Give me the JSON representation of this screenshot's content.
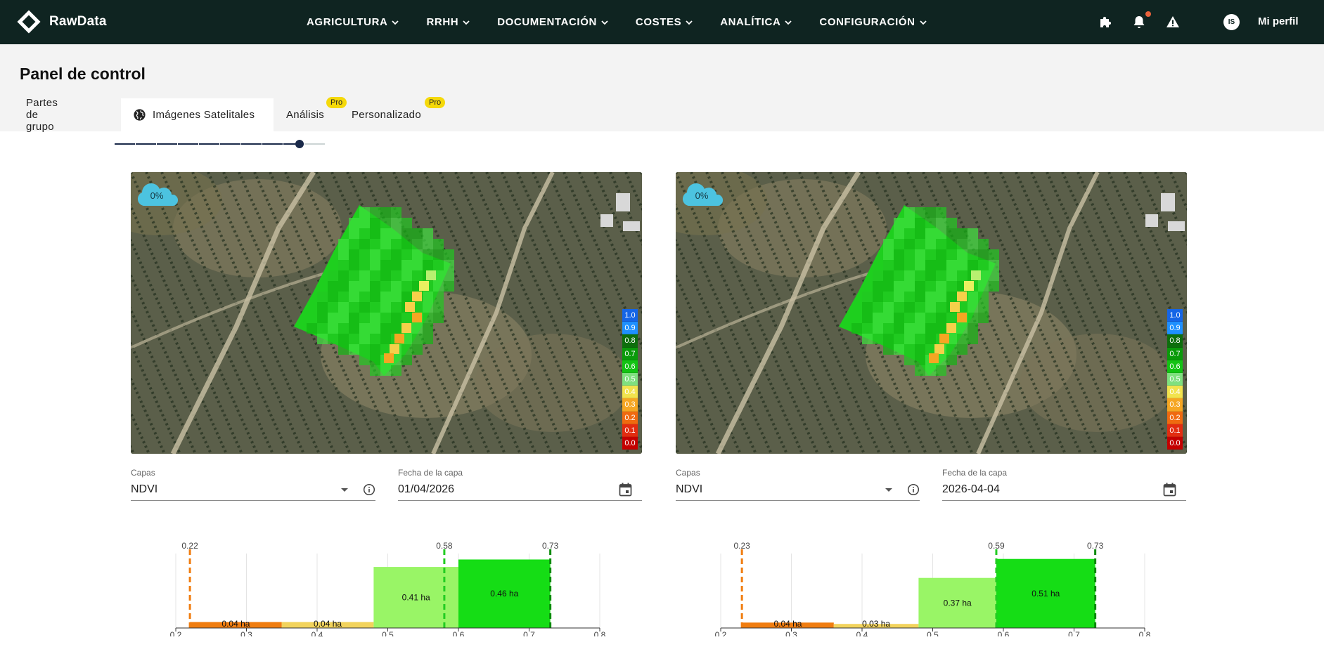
{
  "app": {
    "name": "RawData"
  },
  "nav": [
    {
      "label": "AGRICULTURA"
    },
    {
      "label": "RRHH"
    },
    {
      "label": "DOCUMENTACIÓN"
    },
    {
      "label": "COSTES"
    },
    {
      "label": "ANALÍTICA"
    },
    {
      "label": "CONFIGURACIÓN"
    }
  ],
  "user": {
    "initials": "IS",
    "profile_label": "Mi perfil"
  },
  "page": {
    "title": "Panel de control"
  },
  "tabs": [
    {
      "label": "Partes de grupo",
      "active": false
    },
    {
      "label": "Imágenes Satelitales",
      "active": true
    },
    {
      "label": "Análisis",
      "active": false,
      "badge": "Pro"
    },
    {
      "label": "Personalizado",
      "active": false,
      "badge": "Pro"
    }
  ],
  "timeline": {
    "steps": 10,
    "selected_step": 9
  },
  "scale_values": [
    "1.0",
    "0.9",
    "0.8",
    "0.7",
    "0.6",
    "0.5",
    "0.4",
    "0.3",
    "0.2",
    "0.1",
    "0.0"
  ],
  "scale_colors": [
    "#1565e6",
    "#1e90ff",
    "#0d6e0d",
    "#0a9a0a",
    "#13c313",
    "#7fe07f",
    "#f2e34d",
    "#f5a623",
    "#f06a10",
    "#e22c10",
    "#c40000"
  ],
  "panels": [
    {
      "cloud_label": "0%",
      "layers_label": "Capas",
      "layer_value": "NDVI",
      "date_label": "Fecha de la capa",
      "date_value": "01/04/2026"
    },
    {
      "cloud_label": "0%",
      "layers_label": "Capas",
      "layer_value": "NDVI",
      "date_label": "Fecha de la capa",
      "date_value": "2026-04-04"
    }
  ],
  "chart_data": [
    {
      "type": "bar",
      "xlim": [
        0.2,
        0.8
      ],
      "x_ticks": [
        "0.2",
        "0.3",
        "0.4",
        "0.5",
        "0.6",
        "0.7",
        "0.8"
      ],
      "bars": [
        {
          "x0": 0.22,
          "x1": 0.35,
          "value": 0.04,
          "label": "0.04 ha",
          "color": "#f07d10"
        },
        {
          "x0": 0.35,
          "x1": 0.48,
          "value": 0.04,
          "label": "0.04 ha",
          "color": "#f2d35c"
        },
        {
          "x0": 0.48,
          "x1": 0.6,
          "value": 0.41,
          "label": "0.41 ha",
          "color": "#99f566"
        },
        {
          "x0": 0.6,
          "x1": 0.73,
          "value": 0.46,
          "label": "0.46 ha",
          "color": "#15dd15"
        }
      ],
      "markers": [
        {
          "x": 0.22,
          "label": "0.22",
          "color": "#f07d10"
        },
        {
          "x": 0.58,
          "label": "0.58",
          "color": "#22cc22"
        },
        {
          "x": 0.73,
          "label": "0.73",
          "color": "#0a8a0a"
        }
      ],
      "ylim": [
        0,
        0.5
      ]
    },
    {
      "type": "bar",
      "xlim": [
        0.2,
        0.8
      ],
      "x_ticks": [
        "0.2",
        "0.3",
        "0.4",
        "0.5",
        "0.6",
        "0.7",
        "0.8"
      ],
      "bars": [
        {
          "x0": 0.23,
          "x1": 0.36,
          "value": 0.04,
          "label": "0.04 ha",
          "color": "#f07d10"
        },
        {
          "x0": 0.36,
          "x1": 0.48,
          "value": 0.03,
          "label": "0.03 ha",
          "color": "#f2d35c"
        },
        {
          "x0": 0.48,
          "x1": 0.59,
          "value": 0.37,
          "label": "0.37 ha",
          "color": "#99f566"
        },
        {
          "x0": 0.59,
          "x1": 0.73,
          "value": 0.51,
          "label": "0.51 ha",
          "color": "#15dd15"
        }
      ],
      "markers": [
        {
          "x": 0.23,
          "label": "0.23",
          "color": "#f07d10"
        },
        {
          "x": 0.59,
          "label": "0.59",
          "color": "#22cc22"
        },
        {
          "x": 0.73,
          "label": "0.73",
          "color": "#0a8a0a"
        }
      ],
      "ylim": [
        0,
        0.55
      ]
    }
  ]
}
